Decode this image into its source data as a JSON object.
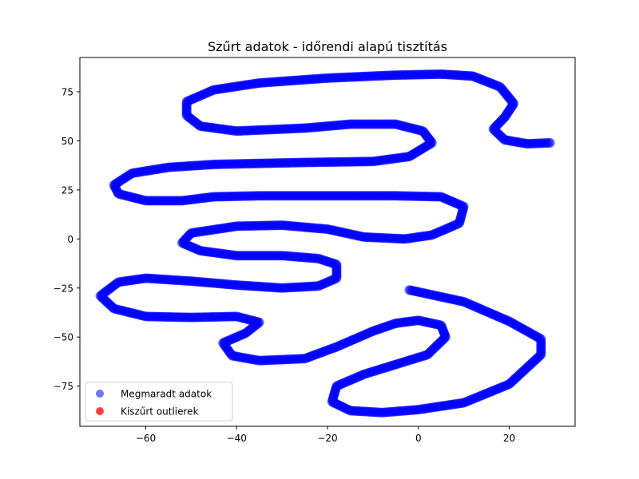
{
  "chart_data": {
    "type": "scatter",
    "title": "Szűrt adatok - időrendi alapú tisztítás",
    "xlabel": "",
    "ylabel": "",
    "xlim": [
      -74.5,
      34.5
    ],
    "ylim": [
      -95.5,
      92.5
    ],
    "xticks": [
      -60,
      -40,
      -20,
      0,
      20
    ],
    "yticks": [
      -75,
      -50,
      -25,
      0,
      25,
      50,
      75
    ],
    "xtick_labels": [
      "−60",
      "−40",
      "−20",
      "0",
      "20"
    ],
    "ytick_labels": [
      "−75",
      "−50",
      "−25",
      "0",
      "25",
      "50",
      "75"
    ],
    "grid": false,
    "legend_position": "lower-left",
    "series": [
      {
        "name": "Megmaradt adatok",
        "color": "#0000ff",
        "points": [
          [
            29,
            49
          ],
          [
            24,
            48.5
          ],
          [
            19,
            50.5
          ],
          [
            16.5,
            56
          ],
          [
            19,
            62
          ],
          [
            21,
            69
          ],
          [
            18,
            77.5
          ],
          [
            12,
            83
          ],
          [
            5,
            84
          ],
          [
            -5,
            83.5
          ],
          [
            -20,
            82
          ],
          [
            -35,
            79.5
          ],
          [
            -45,
            76
          ],
          [
            -51,
            70
          ],
          [
            -51,
            63
          ],
          [
            -48,
            57.5
          ],
          [
            -40,
            55
          ],
          [
            -25,
            56.5
          ],
          [
            -15,
            58.5
          ],
          [
            -5,
            58.5
          ],
          [
            1,
            55
          ],
          [
            3,
            49
          ],
          [
            -2,
            42
          ],
          [
            -10,
            39.5
          ],
          [
            -25,
            39
          ],
          [
            -35,
            38.5
          ],
          [
            -45,
            38
          ],
          [
            -55,
            36.5
          ],
          [
            -63,
            33.5
          ],
          [
            -67,
            27.5
          ],
          [
            -66,
            23
          ],
          [
            -60,
            19.5
          ],
          [
            -52,
            19.5
          ],
          [
            -45,
            21.5
          ],
          [
            -35,
            22
          ],
          [
            -20,
            22
          ],
          [
            -5,
            22
          ],
          [
            5,
            21.5
          ],
          [
            10,
            16.5
          ],
          [
            9,
            8
          ],
          [
            3,
            2
          ],
          [
            -3,
            0
          ],
          [
            -12,
            1
          ],
          [
            -20,
            5
          ],
          [
            -30,
            7
          ],
          [
            -40,
            6.5
          ],
          [
            -50,
            3
          ],
          [
            -52,
            -2
          ],
          [
            -48,
            -6
          ],
          [
            -40,
            -8.5
          ],
          [
            -30,
            -8.5
          ],
          [
            -22,
            -10
          ],
          [
            -18,
            -13
          ],
          [
            -18,
            -20
          ],
          [
            -22,
            -24
          ],
          [
            -30,
            -25
          ],
          [
            -40,
            -23.5
          ],
          [
            -50,
            -21.5
          ],
          [
            -60,
            -20
          ],
          [
            -66,
            -22
          ],
          [
            -70,
            -29
          ],
          [
            -67,
            -35.5
          ],
          [
            -60,
            -39.5
          ],
          [
            -50,
            -40
          ],
          [
            -40,
            -39.5
          ],
          [
            -35,
            -42.5
          ],
          [
            -38,
            -48
          ],
          [
            -43,
            -53
          ],
          [
            -41,
            -59.5
          ],
          [
            -35,
            -62
          ],
          [
            -25,
            -61
          ],
          [
            -18,
            -55
          ],
          [
            -10,
            -47
          ],
          [
            -5,
            -43
          ],
          [
            0,
            -41.5
          ],
          [
            5,
            -44
          ],
          [
            6,
            -50
          ],
          [
            2,
            -59
          ],
          [
            -5,
            -64
          ],
          [
            -12,
            -69
          ],
          [
            -18,
            -75
          ],
          [
            -19,
            -83
          ],
          [
            -15,
            -87.5
          ],
          [
            -8,
            -88.5
          ],
          [
            0,
            -87
          ],
          [
            10,
            -83.5
          ],
          [
            20,
            -74
          ],
          [
            27,
            -59
          ],
          [
            27,
            -51
          ],
          [
            20,
            -42
          ],
          [
            10,
            -32
          ],
          [
            0,
            -27
          ],
          [
            -2,
            -26
          ]
        ]
      },
      {
        "name": "Kiszűrt outlierek",
        "color": "#ff0000",
        "points": []
      }
    ]
  }
}
